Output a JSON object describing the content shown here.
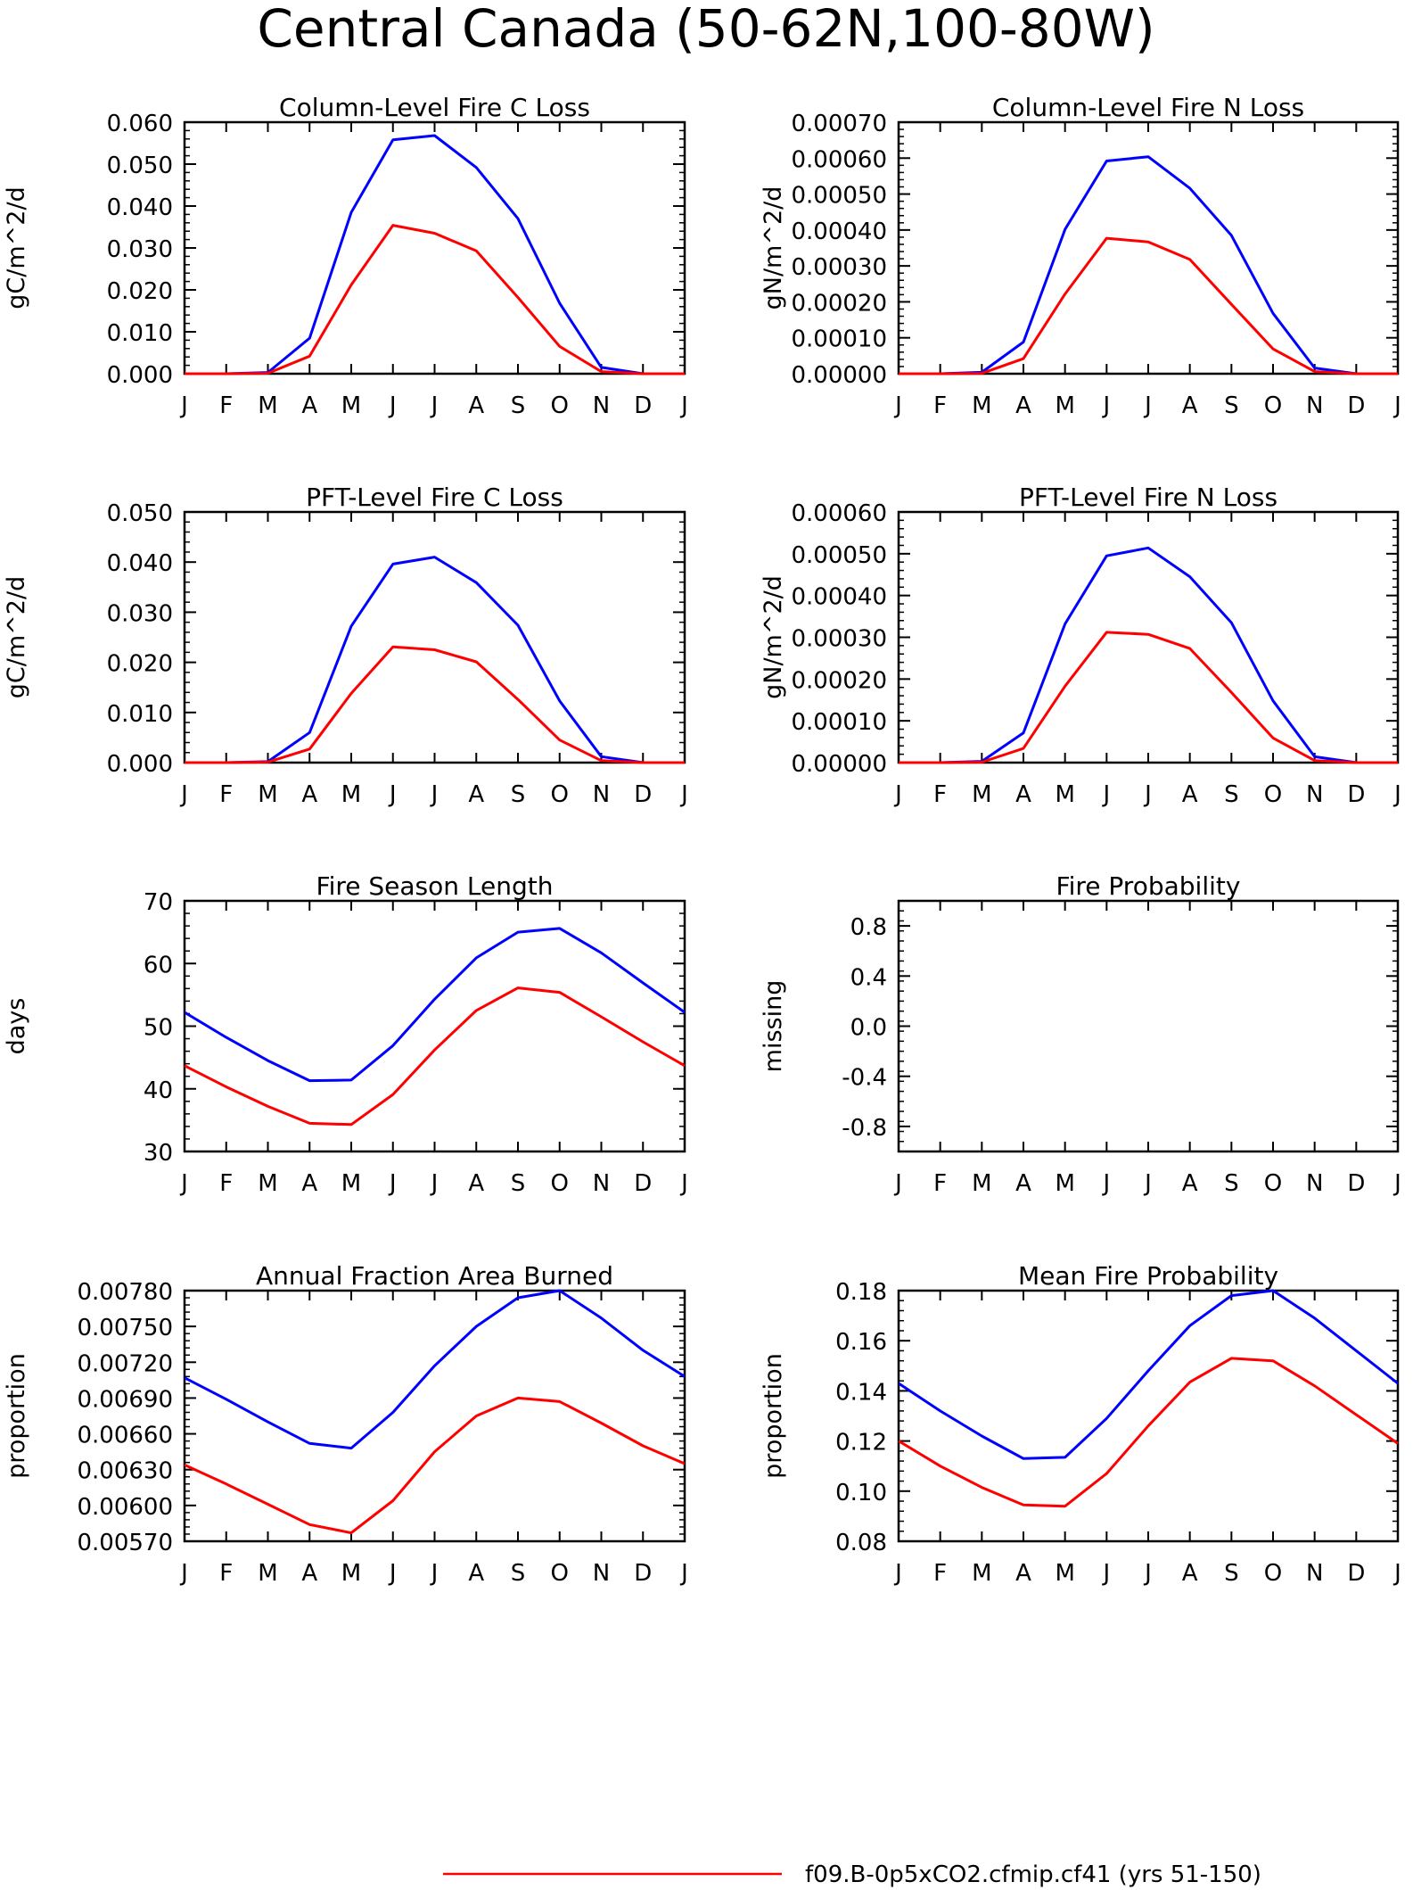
{
  "page_title": "Central Canada (50-62N,100-80W)",
  "colors": {
    "series_red": "#ff0000",
    "series_blue": "#0000ff",
    "axes": "#000000"
  },
  "legend": {
    "label": "f09.B-0p5xCO2.cfmip.cf41 (yrs 51-150)"
  },
  "chart_data": [
    {
      "type": "line",
      "title": "Column-Level Fire C Loss",
      "ylabel": "gC/m^2/d",
      "categories": [
        "J",
        "F",
        "M",
        "A",
        "M",
        "J",
        "J",
        "A",
        "S",
        "O",
        "N",
        "D",
        "J"
      ],
      "ylim": [
        0,
        0.06
      ],
      "yticks": [
        "0.000",
        "0.010",
        "0.020",
        "0.030",
        "0.040",
        "0.050",
        "0.060"
      ],
      "series": [
        {
          "color": "#0000ff",
          "values": [
            0,
            0,
            0.0003,
            0.0085,
            0.0385,
            0.0558,
            0.0568,
            0.0492,
            0.037,
            0.0168,
            0.0015,
            0,
            0
          ]
        },
        {
          "color": "#ff0000",
          "values": [
            0,
            0,
            0.0001,
            0.0042,
            0.0212,
            0.0354,
            0.0335,
            0.0293,
            0.0182,
            0.0065,
            0.0005,
            0,
            0
          ]
        }
      ]
    },
    {
      "type": "line",
      "title": "Column-Level Fire N Loss",
      "ylabel": "gN/m^2/d",
      "categories": [
        "J",
        "F",
        "M",
        "A",
        "M",
        "J",
        "J",
        "A",
        "S",
        "O",
        "N",
        "D",
        "J"
      ],
      "ylim": [
        0,
        0.0007
      ],
      "yticks": [
        "0.00000",
        "0.00010",
        "0.00020",
        "0.00030",
        "0.00040",
        "0.00050",
        "0.00060",
        "0.00070"
      ],
      "series": [
        {
          "color": "#0000ff",
          "values": [
            0,
            0,
            4e-06,
            8.8e-05,
            0.000402,
            0.000592,
            0.000604,
            0.000516,
            0.000385,
            0.000168,
            1.6e-05,
            0,
            0
          ]
        },
        {
          "color": "#ff0000",
          "values": [
            0,
            0,
            1e-06,
            4.2e-05,
            0.000222,
            0.000377,
            0.000367,
            0.000318,
            0.000193,
            6.9e-05,
            6e-06,
            0,
            0
          ]
        }
      ]
    },
    {
      "type": "line",
      "title": "PFT-Level Fire C Loss",
      "ylabel": "gC/m^2/d",
      "categories": [
        "J",
        "F",
        "M",
        "A",
        "M",
        "J",
        "J",
        "A",
        "S",
        "O",
        "N",
        "D",
        "J"
      ],
      "ylim": [
        0,
        0.05
      ],
      "yticks": [
        "0.000",
        "0.010",
        "0.020",
        "0.030",
        "0.040",
        "0.050"
      ],
      "series": [
        {
          "color": "#0000ff",
          "values": [
            0,
            0,
            0.0002,
            0.006,
            0.0272,
            0.0396,
            0.041,
            0.0359,
            0.0274,
            0.0123,
            0.0012,
            0,
            0
          ]
        },
        {
          "color": "#ff0000",
          "values": [
            0,
            0,
            0.0001,
            0.0027,
            0.0138,
            0.0231,
            0.0225,
            0.0201,
            0.0126,
            0.0045,
            0.0004,
            0,
            0
          ]
        }
      ]
    },
    {
      "type": "line",
      "title": "PFT-Level Fire N Loss",
      "ylabel": "gN/m^2/d",
      "categories": [
        "J",
        "F",
        "M",
        "A",
        "M",
        "J",
        "J",
        "A",
        "S",
        "O",
        "N",
        "D",
        "J"
      ],
      "ylim": [
        0,
        0.0006
      ],
      "yticks": [
        "0.00000",
        "0.00010",
        "0.00020",
        "0.00030",
        "0.00040",
        "0.00050",
        "0.00060"
      ],
      "series": [
        {
          "color": "#0000ff",
          "values": [
            0,
            0,
            3e-06,
            7.1e-05,
            0.000332,
            0.000495,
            0.000514,
            0.000445,
            0.000335,
            0.000148,
            1.4e-05,
            0,
            0
          ]
        },
        {
          "color": "#ff0000",
          "values": [
            0,
            0,
            1e-06,
            3.4e-05,
            0.000183,
            0.000312,
            0.000307,
            0.000273,
            0.000168,
            5.9e-05,
            5e-06,
            0,
            0
          ]
        }
      ]
    },
    {
      "type": "line",
      "title": "Fire Season Length",
      "ylabel": "days",
      "categories": [
        "J",
        "F",
        "M",
        "A",
        "M",
        "J",
        "J",
        "A",
        "S",
        "O",
        "N",
        "D",
        "J"
      ],
      "ylim": [
        30,
        70
      ],
      "yticks": [
        "30",
        "40",
        "50",
        "60",
        "70"
      ],
      "series": [
        {
          "color": "#0000ff",
          "values": [
            52.2,
            48.2,
            44.5,
            41.3,
            41.4,
            46.9,
            54.3,
            60.9,
            65.0,
            65.6,
            61.7,
            56.9,
            52.2
          ]
        },
        {
          "color": "#ff0000",
          "values": [
            43.7,
            40.3,
            37.2,
            34.5,
            34.3,
            39.1,
            46.2,
            52.5,
            56.1,
            55.4,
            51.5,
            47.5,
            43.7
          ]
        }
      ]
    },
    {
      "type": "line",
      "title": "Fire Probability",
      "ylabel": "missing",
      "categories": [
        "J",
        "F",
        "M",
        "A",
        "M",
        "J",
        "J",
        "A",
        "S",
        "O",
        "N",
        "D",
        "J"
      ],
      "ylim": [
        -1,
        1
      ],
      "yticks": [
        "-0.8",
        "-0.4",
        "0.0",
        "0.4",
        "0.8"
      ],
      "ytick_values": [
        -0.8,
        -0.4,
        0,
        0.4,
        0.8
      ],
      "series": []
    },
    {
      "type": "line",
      "title": "Annual Fraction Area Burned",
      "ylabel": "proportion",
      "categories": [
        "J",
        "F",
        "M",
        "A",
        "M",
        "J",
        "J",
        "A",
        "S",
        "O",
        "N",
        "D",
        "J"
      ],
      "ylim": [
        0.0057,
        0.0078
      ],
      "yticks": [
        "0.00570",
        "0.00600",
        "0.00630",
        "0.00660",
        "0.00690",
        "0.00720",
        "0.00750",
        "0.00780"
      ],
      "series": [
        {
          "color": "#0000ff",
          "values": [
            0.00707,
            0.00689,
            0.0067,
            0.00652,
            0.00648,
            0.00678,
            0.00717,
            0.0075,
            0.00774,
            0.0078,
            0.00757,
            0.0073,
            0.00708
          ]
        },
        {
          "color": "#ff0000",
          "values": [
            0.00634,
            0.00618,
            0.00601,
            0.00584,
            0.00577,
            0.00604,
            0.00645,
            0.00675,
            0.0069,
            0.00687,
            0.00669,
            0.0065,
            0.00635
          ]
        }
      ]
    },
    {
      "type": "line",
      "title": "Mean Fire Probability",
      "ylabel": "proportion",
      "categories": [
        "J",
        "F",
        "M",
        "A",
        "M",
        "J",
        "J",
        "A",
        "S",
        "O",
        "N",
        "D",
        "J"
      ],
      "ylim": [
        0.08,
        0.18
      ],
      "yticks": [
        "0.08",
        "0.10",
        "0.12",
        "0.14",
        "0.16",
        "0.18"
      ],
      "series": [
        {
          "color": "#0000ff",
          "values": [
            0.143,
            0.132,
            0.122,
            0.113,
            0.1135,
            0.129,
            0.148,
            0.166,
            0.178,
            0.18,
            0.169,
            0.156,
            0.143
          ]
        },
        {
          "color": "#ff0000",
          "values": [
            0.12,
            0.11,
            0.1015,
            0.0945,
            0.094,
            0.107,
            0.126,
            0.1435,
            0.153,
            0.152,
            0.142,
            0.1305,
            0.119
          ]
        }
      ]
    }
  ]
}
